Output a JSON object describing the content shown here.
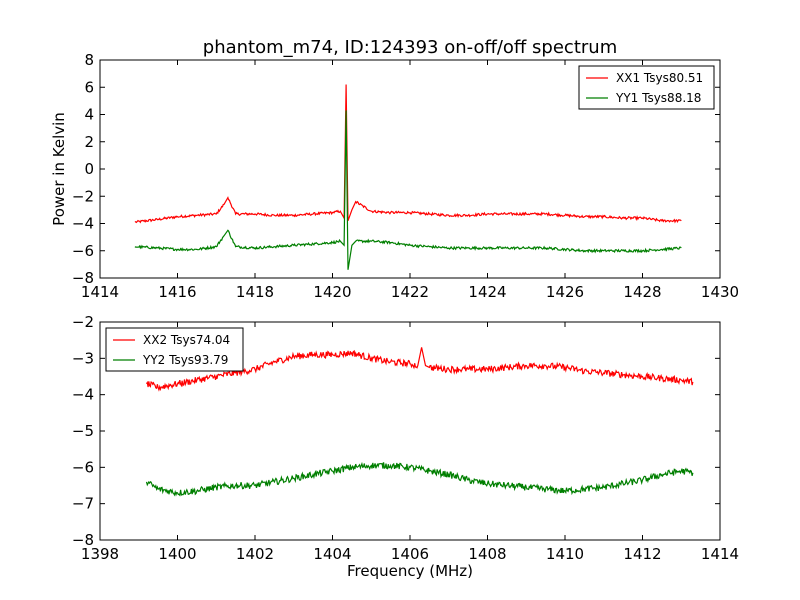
{
  "title": "phantom_m74, ID:124393 on-off/off spectrum",
  "colors": {
    "xx": "#ff0000",
    "yy": "#007f00"
  },
  "chart_data": [
    {
      "type": "line",
      "ylabel": "Power in Kelvin",
      "xlabel": "",
      "xlim": [
        1414,
        1430
      ],
      "ylim": [
        -8,
        8
      ],
      "xticks": [
        "1414",
        "1416",
        "1418",
        "1420",
        "1422",
        "1424",
        "1426",
        "1428",
        "1430"
      ],
      "yticks": [
        "−8",
        "−6",
        "−4",
        "−2",
        "0",
        "2",
        "4",
        "6",
        "8"
      ],
      "legend": "top-right",
      "grid": false,
      "series": [
        {
          "name": "XX1 Tsys80.51",
          "color": "#ff0000",
          "x": [
            1414.9,
            1415.5,
            1416.0,
            1416.5,
            1417.0,
            1417.2,
            1417.3,
            1417.5,
            1418.0,
            1418.5,
            1419.0,
            1419.5,
            1420.0,
            1420.2,
            1420.3,
            1420.35,
            1420.4,
            1420.5,
            1420.6,
            1421.0,
            1421.5,
            1422.0,
            1422.5,
            1423.0,
            1423.5,
            1424.0,
            1424.5,
            1425.0,
            1425.5,
            1426.0,
            1426.5,
            1427.0,
            1427.5,
            1428.0,
            1428.5,
            1429.0
          ],
          "y": [
            -3.9,
            -3.7,
            -3.5,
            -3.4,
            -3.3,
            -2.6,
            -2.1,
            -3.3,
            -3.3,
            -3.4,
            -3.4,
            -3.3,
            -3.2,
            -3.1,
            -3.6,
            6.2,
            -3.8,
            -3.0,
            -2.4,
            -3.1,
            -3.2,
            -3.2,
            -3.3,
            -3.4,
            -3.4,
            -3.3,
            -3.3,
            -3.3,
            -3.3,
            -3.4,
            -3.5,
            -3.5,
            -3.6,
            -3.6,
            -3.8,
            -3.8
          ]
        },
        {
          "name": "YY1 Tsys88.18",
          "color": "#007f00",
          "x": [
            1414.9,
            1415.5,
            1416.0,
            1416.5,
            1417.0,
            1417.2,
            1417.3,
            1417.5,
            1418.0,
            1418.5,
            1419.0,
            1419.5,
            1420.0,
            1420.2,
            1420.3,
            1420.35,
            1420.4,
            1420.5,
            1420.6,
            1421.0,
            1421.5,
            1422.0,
            1422.5,
            1423.0,
            1423.5,
            1424.0,
            1424.5,
            1425.0,
            1425.5,
            1426.0,
            1426.5,
            1427.0,
            1427.5,
            1428.0,
            1428.5,
            1429.0
          ],
          "y": [
            -5.7,
            -5.8,
            -5.9,
            -5.9,
            -5.7,
            -4.9,
            -4.5,
            -5.7,
            -5.8,
            -5.7,
            -5.6,
            -5.5,
            -5.4,
            -5.3,
            -5.6,
            4.3,
            -7.4,
            -5.6,
            -5.3,
            -5.3,
            -5.4,
            -5.6,
            -5.7,
            -5.8,
            -5.8,
            -5.8,
            -5.8,
            -5.8,
            -5.8,
            -5.9,
            -6.0,
            -6.0,
            -6.0,
            -6.0,
            -5.9,
            -5.8
          ]
        }
      ]
    },
    {
      "type": "line",
      "ylabel": "",
      "xlabel": "Frequency (MHz)",
      "xlim": [
        1398,
        1414
      ],
      "ylim": [
        -8,
        -2
      ],
      "xticks": [
        "1398",
        "1400",
        "1402",
        "1404",
        "1406",
        "1408",
        "1410",
        "1412",
        "1414"
      ],
      "yticks": [
        "−8",
        "−7",
        "−6",
        "−5",
        "−4",
        "−3",
        "−2"
      ],
      "legend": "top-left",
      "grid": false,
      "series": [
        {
          "name": "XX2 Tsys74.04",
          "color": "#ff0000",
          "x": [
            1399.2,
            1399.5,
            1400.0,
            1400.5,
            1401.0,
            1401.5,
            1402.0,
            1402.5,
            1403.0,
            1403.5,
            1404.0,
            1404.5,
            1405.0,
            1405.5,
            1406.0,
            1406.2,
            1406.3,
            1406.4,
            1406.5,
            1407.0,
            1407.5,
            1408.0,
            1408.5,
            1409.0,
            1409.5,
            1410.0,
            1410.5,
            1411.0,
            1411.5,
            1412.0,
            1412.5,
            1413.0,
            1413.3
          ],
          "y": [
            -3.7,
            -3.8,
            -3.7,
            -3.6,
            -3.5,
            -3.4,
            -3.3,
            -3.1,
            -2.95,
            -2.9,
            -2.9,
            -2.85,
            -3.0,
            -3.1,
            -3.15,
            -3.2,
            -2.7,
            -3.2,
            -3.25,
            -3.3,
            -3.3,
            -3.3,
            -3.25,
            -3.2,
            -3.2,
            -3.25,
            -3.35,
            -3.4,
            -3.45,
            -3.5,
            -3.55,
            -3.6,
            -3.65
          ]
        },
        {
          "name": "YY2 Tsys93.79",
          "color": "#007f00",
          "x": [
            1399.2,
            1399.5,
            1400.0,
            1400.5,
            1401.0,
            1401.5,
            1402.0,
            1402.5,
            1403.0,
            1403.5,
            1404.0,
            1404.5,
            1405.0,
            1405.5,
            1406.0,
            1406.5,
            1407.0,
            1407.5,
            1408.0,
            1408.5,
            1409.0,
            1409.5,
            1410.0,
            1410.5,
            1411.0,
            1411.5,
            1412.0,
            1412.5,
            1413.0,
            1413.3
          ],
          "y": [
            -6.4,
            -6.6,
            -6.7,
            -6.65,
            -6.55,
            -6.5,
            -6.5,
            -6.4,
            -6.3,
            -6.2,
            -6.1,
            -6.0,
            -5.95,
            -5.95,
            -6.0,
            -6.1,
            -6.2,
            -6.35,
            -6.45,
            -6.5,
            -6.55,
            -6.6,
            -6.65,
            -6.6,
            -6.55,
            -6.45,
            -6.35,
            -6.2,
            -6.1,
            -6.15
          ]
        }
      ]
    }
  ]
}
